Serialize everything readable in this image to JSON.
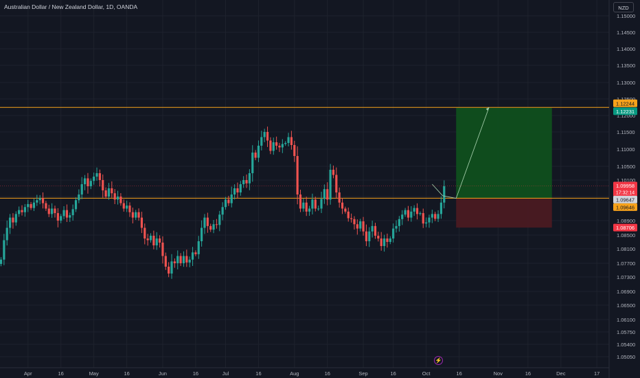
{
  "header": {
    "title": "Australian Dollar / New Zealand Dollar, 1D, OANDA",
    "currency": "NZD"
  },
  "icons": {
    "replay": "lightning-icon"
  },
  "colors": {
    "background": "#131722",
    "up": "#26a69a",
    "down": "#ef5350",
    "orange": "#f7a21b",
    "green_tag": "#089981",
    "red_tag": "#f23645",
    "grid": "#1e222d"
  },
  "chart_data": {
    "type": "candlestick",
    "title": "Australian Dollar / New Zealand Dollar, 1D, OANDA",
    "ylabel": "NZD",
    "ylim": [
      1.048,
      1.153
    ],
    "y_ticks": [
      "1.15000",
      "1.14500",
      "1.14000",
      "1.13500",
      "1.13000",
      "1.12500",
      "1.12000",
      "1.11500",
      "1.11000",
      "1.10500",
      "1.10100",
      "1.09700",
      "1.08900",
      "1.08500",
      "1.08100",
      "1.07700",
      "1.07300",
      "1.06900",
      "1.06500",
      "1.06100",
      "1.05750",
      "1.05400",
      "1.05050"
    ],
    "x_ticks": [
      {
        "label": "Apr",
        "bar": 9
      },
      {
        "label": "16",
        "bar": 20
      },
      {
        "label": "May",
        "bar": 31
      },
      {
        "label": "16",
        "bar": 42
      },
      {
        "label": "Jun",
        "bar": 54
      },
      {
        "label": "16",
        "bar": 65
      },
      {
        "label": "Jul",
        "bar": 75
      },
      {
        "label": "16",
        "bar": 86
      },
      {
        "label": "Aug",
        "bar": 98
      },
      {
        "label": "16",
        "bar": 109
      },
      {
        "label": "Sep",
        "bar": 121
      },
      {
        "label": "16",
        "bar": 131
      },
      {
        "label": "Oct",
        "bar": 142
      },
      {
        "label": "16",
        "bar": 153
      },
      {
        "label": "Nov",
        "bar": 166
      },
      {
        "label": "16",
        "bar": 176
      },
      {
        "label": "Dec",
        "bar": 187
      },
      {
        "label": "17",
        "bar": 199
      }
    ],
    "closes": [
      1.078,
      1.0835,
      1.087,
      1.09,
      1.0885,
      1.0912,
      1.0925,
      1.0918,
      1.0935,
      1.0945,
      1.0932,
      1.095,
      1.0958,
      1.0965,
      1.0948,
      1.093,
      1.0912,
      1.093,
      1.0915,
      1.089,
      1.0905,
      1.0925,
      1.09,
      1.0908,
      1.0928,
      1.0958,
      1.0975,
      1.1,
      1.1015,
      1.0995,
      1.1008,
      1.102,
      1.103,
      1.101,
      1.0985,
      1.097,
      1.099,
      1.0978,
      1.096,
      1.097,
      1.0948,
      1.093,
      1.094,
      1.0918,
      1.09,
      1.0918,
      1.09,
      1.087,
      1.084,
      1.0835,
      1.0848,
      1.082,
      1.084,
      1.0828,
      1.079,
      1.076,
      1.074,
      1.0775,
      1.077,
      1.079,
      1.077,
      1.079,
      1.0772,
      1.078,
      1.08,
      1.0795,
      1.0832,
      1.087,
      1.09,
      1.0875,
      1.0865,
      1.088,
      1.0878,
      1.091,
      1.0935,
      1.096,
      1.0948,
      1.0975,
      1.099,
      1.098,
      1.1,
      1.101,
      1.1002,
      1.103,
      1.109,
      1.1075,
      1.111,
      1.1135,
      1.115,
      1.1125,
      1.1095,
      1.112,
      1.111,
      1.1105,
      1.1115,
      1.1118,
      1.1135,
      1.1112,
      1.108,
      1.0975,
      1.093,
      1.095,
      1.092,
      1.093,
      1.096,
      1.093,
      1.093,
      1.0962,
      1.0988,
      1.096,
      1.104,
      1.1025,
      1.098,
      1.095,
      1.093,
      1.092,
      1.0898,
      1.0895,
      1.088,
      1.0868,
      1.0888,
      1.086,
      1.0832,
      1.086,
      1.0875,
      1.0848,
      1.084,
      1.0818,
      1.084,
      1.083,
      1.084,
      1.0868,
      1.0875,
      1.0895,
      1.091,
      1.0925,
      1.09,
      1.092,
      1.0932,
      1.0912,
      1.0915,
      1.0882,
      1.0885,
      1.09,
      1.0912,
      1.0896,
      1.0912,
      1.095,
      1.0995
    ],
    "last_close": "1.09958",
    "countdown": "17:32:14",
    "position": {
      "type": "long",
      "entry": 1.09647,
      "target": 1.12231,
      "stop": 1.08706,
      "start_bar": 152,
      "end_bar": 184
    },
    "horizontal_levels": [
      1.12244,
      1.09646
    ],
    "projection_path": [
      {
        "bar": 144,
        "price": 1.1
      },
      {
        "bar": 147.5,
        "price": 1.0972
      },
      {
        "bar": 152,
        "price": 1.0964
      },
      {
        "bar": 163,
        "price": 1.1225
      }
    ],
    "price_tags": [
      {
        "label": "1.12244",
        "price": 1.12244,
        "color": "#f7a21b"
      },
      {
        "label": "1.12231",
        "price": 1.12231,
        "color": "#089981"
      },
      {
        "label": "1.09958",
        "price": 1.09958,
        "color": "#f23645"
      },
      {
        "label": "1.09647",
        "price": 1.09647,
        "color": "#d1d4dc"
      },
      {
        "label": "1.09646",
        "price": 1.09646,
        "color": "#f7a21b"
      },
      {
        "label": "1.08706",
        "price": 1.08706,
        "color": "#f23645"
      }
    ]
  }
}
